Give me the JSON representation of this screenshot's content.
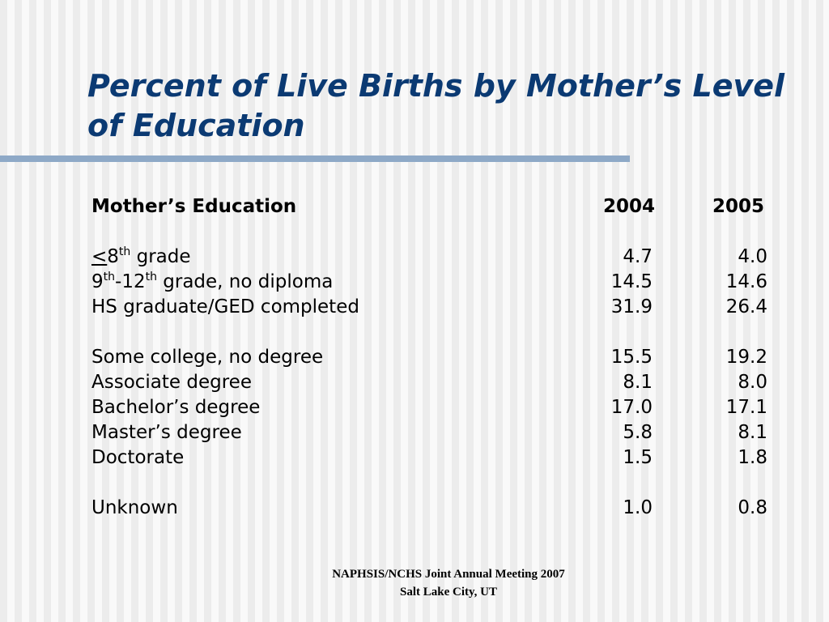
{
  "title": {
    "line1": "Percent of Live Births by Mother’s Level",
    "line2": "of Education"
  },
  "table": {
    "header": {
      "label": "Mother’s Education",
      "y2004": "2004",
      "y2005": "2005"
    },
    "rows": [
      {
        "lt": "<",
        "pre": "8",
        "sup1": "th",
        "rest": " grade",
        "y2004": "4.7",
        "y2005": "4.0"
      },
      {
        "pre": "9",
        "sup1": "th",
        "mid": "-12",
        "sup2": "th",
        "rest": " grade, no diploma",
        "y2004": "14.5",
        "y2005": "14.6"
      },
      {
        "label": "HS graduate/GED completed",
        "y2004": "31.9",
        "y2005": "26.4"
      },
      {
        "label": "Some college, no degree",
        "y2004": "15.5",
        "y2005": "19.2"
      },
      {
        "label": "Associate degree",
        "y2004": "8.1",
        "y2005": "8.0"
      },
      {
        "label": "Bachelor’s degree",
        "y2004": "17.0",
        "y2005": "17.1"
      },
      {
        "label": "Master’s degree",
        "y2004": "5.8",
        "y2005": "8.1"
      },
      {
        "label": "Doctorate",
        "y2004": "1.5",
        "y2005": "1.8"
      },
      {
        "label": "Unknown",
        "y2004": "1.0",
        "y2005": "0.8"
      }
    ]
  },
  "footer": {
    "line1": "NAPHSIS/NCHS Joint Annual Meeting 2007",
    "line2": "Salt Lake City, UT"
  }
}
